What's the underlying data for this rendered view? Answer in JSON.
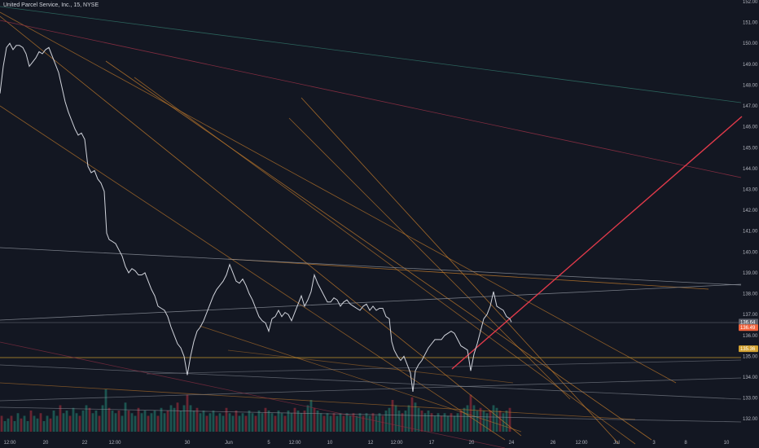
{
  "title": "United Parcel Service, Inc., 15, NYSE",
  "chart_data": {
    "type": "line",
    "symbol": "United Parcel Service, Inc.",
    "interval": "15",
    "exchange": "NYSE",
    "ylim": [
      131.5,
      152.0
    ],
    "y_ticks": [
      "132.00",
      "133.00",
      "134.00",
      "135.00",
      "136.00",
      "137.00",
      "138.00",
      "139.00",
      "140.00",
      "141.00",
      "142.00",
      "143.00",
      "144.00",
      "145.00",
      "146.00",
      "147.00",
      "148.00",
      "149.00",
      "150.00",
      "151.00",
      "152.00"
    ],
    "x_ticks": [
      "12:00",
      "20",
      "22",
      "12:00",
      "30",
      "Jun",
      "5",
      "12:00",
      "10",
      "12",
      "12:00",
      "17",
      "20",
      "24",
      "26",
      "12:00",
      "Jul",
      "3",
      "8",
      "10"
    ],
    "last_price": "136.64",
    "price_badges": [
      "136.64",
      "136.49",
      "135.36"
    ],
    "grid": false,
    "price_series": [
      [
        0,
        147.6
      ],
      [
        4,
        148.9
      ],
      [
        8,
        149.8
      ],
      [
        12,
        150.0
      ],
      [
        16,
        149.7
      ],
      [
        20,
        149.9
      ],
      [
        24,
        149.9
      ],
      [
        28,
        149.8
      ],
      [
        32,
        149.5
      ],
      [
        36,
        148.9
      ],
      [
        40,
        149.1
      ],
      [
        44,
        149.3
      ],
      [
        48,
        149.6
      ],
      [
        52,
        149.5
      ],
      [
        56,
        149.7
      ],
      [
        60,
        149.8
      ],
      [
        64,
        149.4
      ],
      [
        68,
        149.0
      ],
      [
        72,
        148.6
      ],
      [
        76,
        147.9
      ],
      [
        80,
        147.2
      ],
      [
        84,
        146.7
      ],
      [
        88,
        146.3
      ],
      [
        92,
        145.9
      ],
      [
        96,
        145.6
      ],
      [
        100,
        145.7
      ],
      [
        104,
        145.4
      ],
      [
        108,
        144.1
      ],
      [
        112,
        143.8
      ],
      [
        116,
        143.9
      ],
      [
        120,
        143.5
      ],
      [
        124,
        143.3
      ],
      [
        128,
        142.9
      ],
      [
        131,
        140.9
      ],
      [
        134,
        140.6
      ],
      [
        138,
        140.5
      ],
      [
        142,
        140.4
      ],
      [
        146,
        140.1
      ],
      [
        150,
        139.8
      ],
      [
        154,
        139.3
      ],
      [
        158,
        139.0
      ],
      [
        162,
        139.2
      ],
      [
        166,
        139.1
      ],
      [
        170,
        138.9
      ],
      [
        174,
        138.9
      ],
      [
        178,
        139.0
      ],
      [
        182,
        138.6
      ],
      [
        186,
        138.2
      ],
      [
        190,
        137.9
      ],
      [
        194,
        137.4
      ],
      [
        198,
        137.3
      ],
      [
        202,
        137.2
      ],
      [
        206,
        136.9
      ],
      [
        210,
        136.4
      ],
      [
        214,
        136.0
      ],
      [
        218,
        135.6
      ],
      [
        222,
        135.4
      ],
      [
        226,
        135.0
      ],
      [
        230,
        134.1
      ],
      [
        234,
        135.0
      ],
      [
        238,
        135.7
      ],
      [
        242,
        136.2
      ],
      [
        246,
        136.4
      ],
      [
        250,
        136.7
      ],
      [
        254,
        137.1
      ],
      [
        258,
        137.5
      ],
      [
        262,
        137.9
      ],
      [
        266,
        138.2
      ],
      [
        270,
        138.4
      ],
      [
        274,
        138.6
      ],
      [
        278,
        138.9
      ],
      [
        282,
        139.4
      ],
      [
        286,
        139.0
      ],
      [
        290,
        138.6
      ],
      [
        294,
        138.5
      ],
      [
        298,
        138.7
      ],
      [
        302,
        138.4
      ],
      [
        306,
        138.0
      ],
      [
        310,
        137.7
      ],
      [
        314,
        137.3
      ],
      [
        318,
        136.9
      ],
      [
        322,
        136.7
      ],
      [
        326,
        136.6
      ],
      [
        330,
        136.2
      ],
      [
        334,
        136.8
      ],
      [
        338,
        136.9
      ],
      [
        342,
        137.2
      ],
      [
        346,
        136.9
      ],
      [
        350,
        137.1
      ],
      [
        354,
        137.0
      ],
      [
        358,
        136.7
      ],
      [
        362,
        137.1
      ],
      [
        366,
        137.5
      ],
      [
        370,
        137.9
      ],
      [
        374,
        137.4
      ],
      [
        378,
        137.7
      ],
      [
        382,
        138.1
      ],
      [
        386,
        138.9
      ],
      [
        390,
        138.5
      ],
      [
        394,
        138.2
      ],
      [
        398,
        137.9
      ],
      [
        402,
        137.6
      ],
      [
        406,
        137.6
      ],
      [
        410,
        137.8
      ],
      [
        414,
        137.7
      ],
      [
        418,
        137.4
      ],
      [
        422,
        137.6
      ],
      [
        426,
        137.7
      ],
      [
        430,
        137.5
      ],
      [
        434,
        137.4
      ],
      [
        438,
        137.3
      ],
      [
        442,
        137.2
      ],
      [
        446,
        137.4
      ],
      [
        450,
        137.5
      ],
      [
        454,
        137.2
      ],
      [
        458,
        137.4
      ],
      [
        462,
        137.2
      ],
      [
        466,
        137.3
      ],
      [
        470,
        137.3
      ],
      [
        474,
        136.9
      ],
      [
        478,
        136.8
      ],
      [
        481,
        135.7
      ],
      [
        484,
        135.3
      ],
      [
        488,
        135.0
      ],
      [
        492,
        134.8
      ],
      [
        496,
        135.0
      ],
      [
        500,
        134.6
      ],
      [
        504,
        134.2
      ],
      [
        507,
        133.3
      ],
      [
        510,
        134.3
      ],
      [
        514,
        134.6
      ],
      [
        518,
        134.8
      ],
      [
        522,
        135.1
      ],
      [
        526,
        135.4
      ],
      [
        530,
        135.6
      ],
      [
        534,
        135.8
      ],
      [
        538,
        135.8
      ],
      [
        542,
        135.8
      ],
      [
        546,
        136.0
      ],
      [
        550,
        136.1
      ],
      [
        554,
        136.2
      ],
      [
        558,
        136.1
      ],
      [
        562,
        135.8
      ],
      [
        566,
        135.5
      ],
      [
        570,
        135.4
      ],
      [
        574,
        135.3
      ],
      [
        578,
        134.3
      ],
      [
        582,
        135.1
      ],
      [
        586,
        135.6
      ],
      [
        590,
        136.2
      ],
      [
        594,
        136.8
      ],
      [
        598,
        137.0
      ],
      [
        602,
        137.4
      ],
      [
        606,
        138.1
      ],
      [
        610,
        137.4
      ],
      [
        614,
        137.3
      ],
      [
        618,
        137.2
      ],
      [
        622,
        136.9
      ],
      [
        626,
        136.8
      ],
      [
        628,
        136.64
      ]
    ],
    "volume_series": [
      [
        2,
        0.3
      ],
      [
        6,
        0.2
      ],
      [
        10,
        0.25
      ],
      [
        14,
        0.3
      ],
      [
        18,
        0.2
      ],
      [
        22,
        0.35
      ],
      [
        26,
        0.25
      ],
      [
        30,
        0.3
      ],
      [
        34,
        0.2
      ],
      [
        38,
        0.4
      ],
      [
        42,
        0.3
      ],
      [
        46,
        0.25
      ],
      [
        50,
        0.35
      ],
      [
        54,
        0.2
      ],
      [
        58,
        0.3
      ],
      [
        62,
        0.25
      ],
      [
        66,
        0.4
      ],
      [
        70,
        0.3
      ],
      [
        74,
        0.5
      ],
      [
        78,
        0.35
      ],
      [
        82,
        0.4
      ],
      [
        86,
        0.3
      ],
      [
        90,
        0.45
      ],
      [
        94,
        0.35
      ],
      [
        98,
        0.3
      ],
      [
        102,
        0.4
      ],
      [
        106,
        0.5
      ],
      [
        110,
        0.45
      ],
      [
        114,
        0.35
      ],
      [
        118,
        0.4
      ],
      [
        122,
        0.3
      ],
      [
        126,
        0.5
      ],
      [
        130,
        0.8
      ],
      [
        134,
        0.45
      ],
      [
        138,
        0.4
      ],
      [
        142,
        0.35
      ],
      [
        146,
        0.4
      ],
      [
        150,
        0.3
      ],
      [
        154,
        0.55
      ],
      [
        158,
        0.4
      ],
      [
        162,
        0.35
      ],
      [
        166,
        0.3
      ],
      [
        170,
        0.45
      ],
      [
        174,
        0.35
      ],
      [
        178,
        0.4
      ],
      [
        182,
        0.3
      ],
      [
        186,
        0.35
      ],
      [
        190,
        0.4
      ],
      [
        194,
        0.3
      ],
      [
        198,
        0.45
      ],
      [
        202,
        0.35
      ],
      [
        206,
        0.4
      ],
      [
        210,
        0.5
      ],
      [
        214,
        0.45
      ],
      [
        218,
        0.55
      ],
      [
        222,
        0.4
      ],
      [
        226,
        0.5
      ],
      [
        230,
        0.7
      ],
      [
        234,
        0.5
      ],
      [
        238,
        0.4
      ],
      [
        242,
        0.45
      ],
      [
        246,
        0.35
      ],
      [
        250,
        0.4
      ],
      [
        254,
        0.3
      ],
      [
        258,
        0.35
      ],
      [
        262,
        0.4
      ],
      [
        266,
        0.3
      ],
      [
        270,
        0.35
      ],
      [
        274,
        0.3
      ],
      [
        278,
        0.45
      ],
      [
        282,
        0.35
      ],
      [
        286,
        0.3
      ],
      [
        290,
        0.4
      ],
      [
        294,
        0.3
      ],
      [
        298,
        0.35
      ],
      [
        302,
        0.3
      ],
      [
        306,
        0.4
      ],
      [
        310,
        0.35
      ],
      [
        314,
        0.3
      ],
      [
        318,
        0.4
      ],
      [
        322,
        0.35
      ],
      [
        326,
        0.45
      ],
      [
        330,
        0.4
      ],
      [
        334,
        0.35
      ],
      [
        338,
        0.3
      ],
      [
        342,
        0.4
      ],
      [
        346,
        0.35
      ],
      [
        350,
        0.3
      ],
      [
        354,
        0.4
      ],
      [
        358,
        0.35
      ],
      [
        362,
        0.45
      ],
      [
        366,
        0.4
      ],
      [
        370,
        0.35
      ],
      [
        374,
        0.4
      ],
      [
        378,
        0.5
      ],
      [
        382,
        0.6
      ],
      [
        386,
        0.45
      ],
      [
        390,
        0.4
      ],
      [
        394,
        0.35
      ],
      [
        398,
        0.3
      ],
      [
        402,
        0.35
      ],
      [
        406,
        0.3
      ],
      [
        410,
        0.35
      ],
      [
        414,
        0.3
      ],
      [
        418,
        0.35
      ],
      [
        422,
        0.3
      ],
      [
        426,
        0.35
      ],
      [
        430,
        0.3
      ],
      [
        434,
        0.35
      ],
      [
        438,
        0.3
      ],
      [
        442,
        0.35
      ],
      [
        446,
        0.3
      ],
      [
        450,
        0.35
      ],
      [
        454,
        0.3
      ],
      [
        458,
        0.35
      ],
      [
        462,
        0.3
      ],
      [
        466,
        0.35
      ],
      [
        470,
        0.3
      ],
      [
        474,
        0.4
      ],
      [
        478,
        0.45
      ],
      [
        482,
        0.6
      ],
      [
        486,
        0.5
      ],
      [
        490,
        0.4
      ],
      [
        494,
        0.35
      ],
      [
        498,
        0.4
      ],
      [
        502,
        0.5
      ],
      [
        506,
        0.65
      ],
      [
        510,
        0.55
      ],
      [
        514,
        0.45
      ],
      [
        518,
        0.4
      ],
      [
        522,
        0.35
      ],
      [
        526,
        0.4
      ],
      [
        530,
        0.35
      ],
      [
        534,
        0.3
      ],
      [
        538,
        0.35
      ],
      [
        542,
        0.3
      ],
      [
        546,
        0.35
      ],
      [
        550,
        0.3
      ],
      [
        554,
        0.35
      ],
      [
        558,
        0.3
      ],
      [
        562,
        0.35
      ],
      [
        566,
        0.4
      ],
      [
        570,
        0.45
      ],
      [
        574,
        0.5
      ],
      [
        578,
        0.7
      ],
      [
        582,
        0.5
      ],
      [
        586,
        0.4
      ],
      [
        590,
        0.45
      ],
      [
        594,
        0.4
      ],
      [
        598,
        0.35
      ],
      [
        602,
        0.4
      ],
      [
        606,
        0.5
      ],
      [
        610,
        0.45
      ],
      [
        614,
        0.4
      ],
      [
        618,
        0.35
      ],
      [
        622,
        0.4
      ],
      [
        626,
        0.45
      ]
    ]
  },
  "colors": {
    "background": "#131722",
    "price_line": "#d1d4dc",
    "orange": "#c17a2b",
    "teal": "#2e6b62",
    "red": "#e03a4a",
    "maroon": "#8c2f43",
    "gray": "#8f949e",
    "axis_text": "#b2b5be",
    "vol_up": "#1f5f58",
    "vol_down": "#7a2734",
    "badge_last": "#5d606b",
    "badge_orange": "#f0623b",
    "badge_yellow": "#d3a231"
  }
}
